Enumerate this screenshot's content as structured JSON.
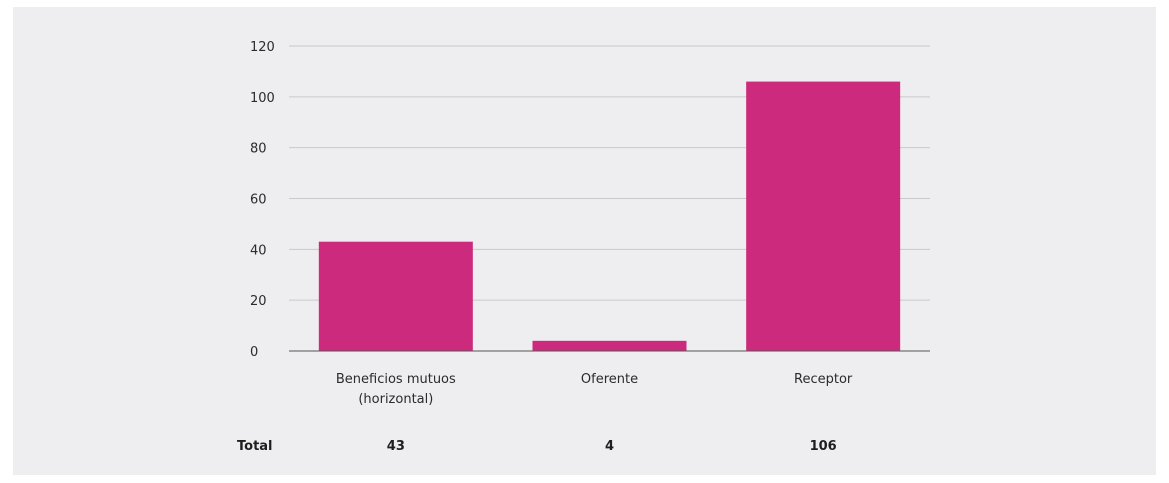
{
  "chart_data": {
    "type": "bar",
    "categories": [
      [
        "Beneficios mutuos",
        "(horizontal)"
      ],
      [
        "Oferente"
      ],
      [
        "Receptor"
      ]
    ],
    "values": [
      43,
      4,
      106
    ],
    "ylim": [
      0,
      120
    ],
    "yticks": [
      0,
      20,
      40,
      60,
      80,
      100,
      120
    ],
    "grid": true,
    "legend": "none",
    "bar_color": "#cc2a7d",
    "total_row": {
      "label": "Total",
      "values": [
        "43",
        "4",
        "106"
      ]
    }
  },
  "colors": {
    "background": "#eeedef",
    "gridline": "#c9c8cc",
    "axis": "#555555"
  }
}
